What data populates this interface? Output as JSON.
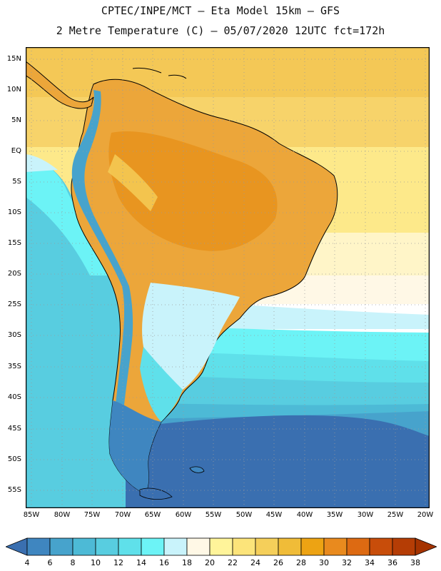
{
  "header": {
    "line1": "CPTEC/INPE/MCT –  Eta Model 15km – GFS",
    "line2": "2 Metre Temperature (C) – 05/07/2020 12UTC fct=172h"
  },
  "map": {
    "lat_labels": [
      "15N",
      "10N",
      "5N",
      "EQ",
      "5S",
      "10S",
      "15S",
      "20S",
      "25S",
      "30S",
      "35S",
      "40S",
      "45S",
      "50S",
      "55S"
    ],
    "lon_labels": [
      "85W",
      "80W",
      "75W",
      "70W",
      "65W",
      "60W",
      "55W",
      "50W",
      "45W",
      "40W",
      "35W",
      "30W",
      "25W",
      "20W"
    ]
  },
  "colorbar": {
    "labels": [
      "4",
      "6",
      "8",
      "10",
      "12",
      "14",
      "16",
      "18",
      "20",
      "22",
      "24",
      "26",
      "28",
      "30",
      "32",
      "34",
      "36",
      "38"
    ],
    "colors": [
      "#3a6fb0",
      "#3f86c0",
      "#47a3cc",
      "#4dbad6",
      "#58cde0",
      "#5fe0ea",
      "#6cf3f6",
      "#c9f3fb",
      "#fff8e6",
      "#fff49a",
      "#fce47a",
      "#f5cf5a",
      "#f0bc38",
      "#eda313",
      "#e98a1e",
      "#dd6a12",
      "#c84d0a",
      "#b53d05",
      "#a53300"
    ]
  }
}
